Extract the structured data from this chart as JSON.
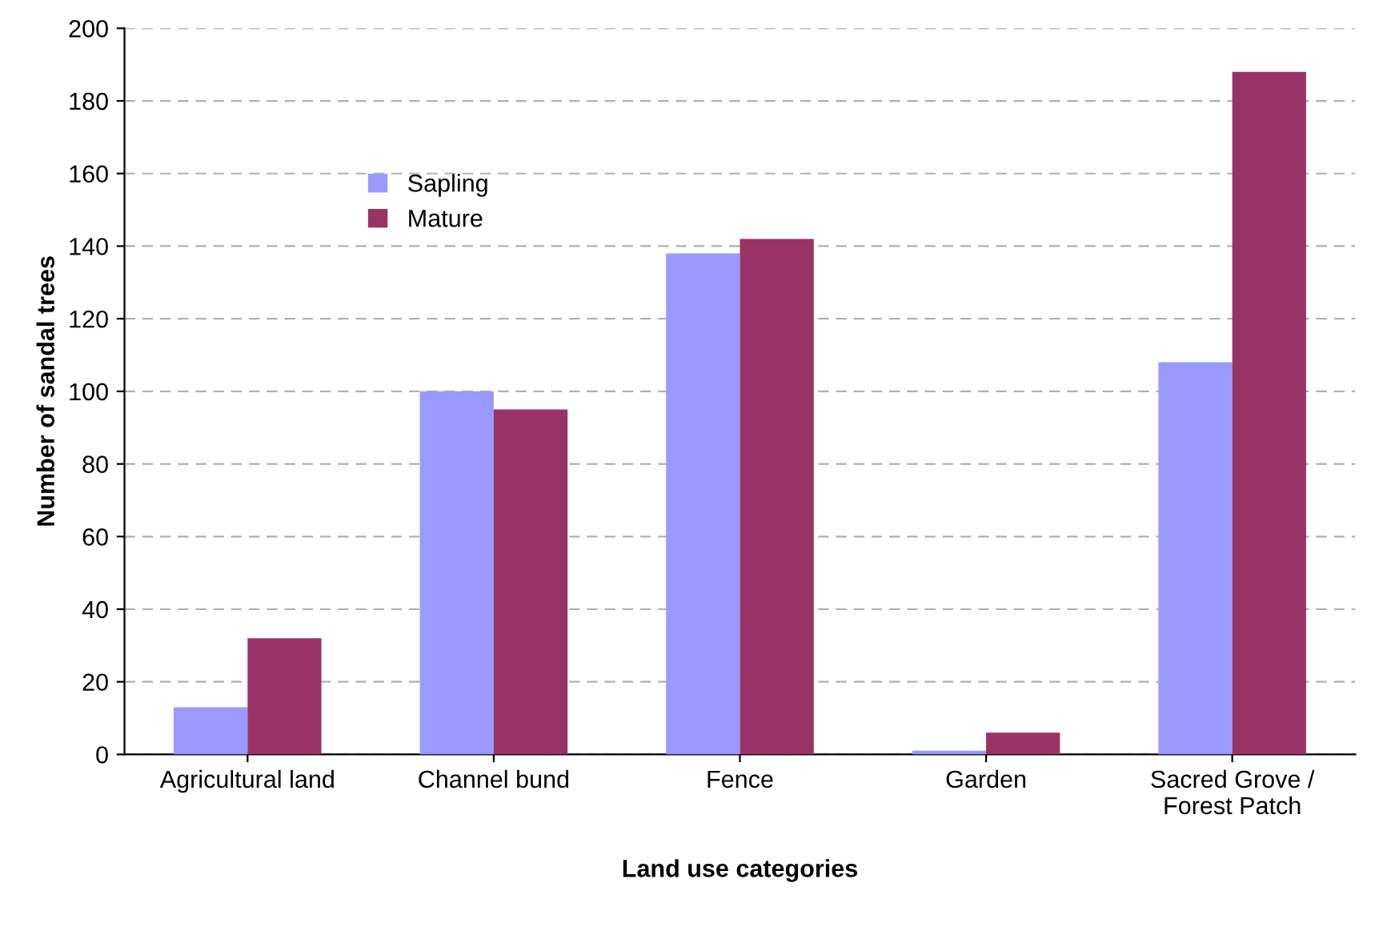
{
  "chart_data": {
    "type": "bar",
    "xlabel": "Land use categories",
    "ylabel": "Number of sandal trees",
    "categories": [
      "Agricultural land",
      "Channel bund",
      "Fence",
      "Garden",
      "Sacred Grove /\nForest Patch"
    ],
    "series": [
      {
        "name": "Sapling",
        "color": "#9999ff",
        "values": [
          13,
          100,
          138,
          1,
          108
        ]
      },
      {
        "name": "Mature",
        "color": "#993366",
        "values": [
          32,
          95,
          142,
          6,
          188
        ]
      }
    ],
    "ylim": [
      0,
      200
    ],
    "yticks": [
      0,
      20,
      40,
      60,
      80,
      100,
      120,
      140,
      160,
      180,
      200
    ],
    "grid": "y",
    "legend": "top left"
  }
}
